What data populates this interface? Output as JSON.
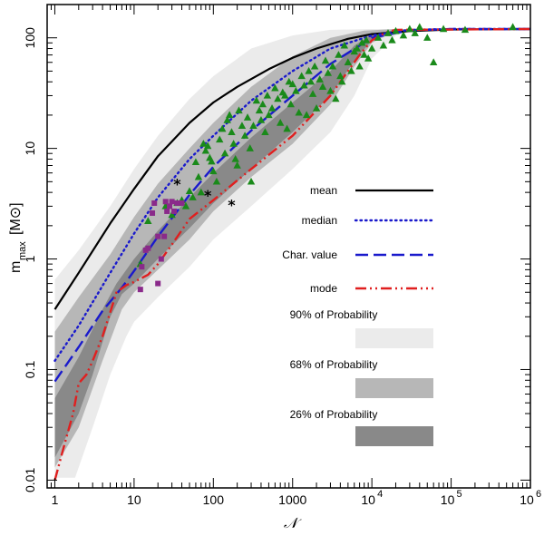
{
  "chart_data": {
    "type": "scatter",
    "title": "",
    "xlabel": "𝒩",
    "ylabel": {
      "main": "m",
      "sub": "max",
      "unit": "[M⊙]"
    },
    "x_scale": "log",
    "y_scale": "log",
    "xlim": [
      0.8,
      1000000
    ],
    "ylim": [
      0.0085,
      200
    ],
    "x_ticks": [
      {
        "value": 1,
        "label": "1"
      },
      {
        "value": 10,
        "label": "10"
      },
      {
        "value": 100,
        "label": "100"
      },
      {
        "value": 1000,
        "label": "1000"
      },
      {
        "value": 10000,
        "label": "10",
        "exp": "4"
      },
      {
        "value": 100000,
        "label": "10",
        "exp": "5"
      },
      {
        "value": 1000000,
        "label": "10",
        "exp": "6"
      }
    ],
    "y_ticks": [
      {
        "value": 0.01,
        "label": "0.01"
      },
      {
        "value": 0.1,
        "label": "0.1"
      },
      {
        "value": 1,
        "label": "1"
      },
      {
        "value": 10,
        "label": "10"
      },
      {
        "value": 100,
        "label": "100"
      }
    ],
    "bands": [
      {
        "name": "90% of Probability",
        "color": "#ebebeb",
        "upper": [
          [
            1,
            0.65
          ],
          [
            2,
            1.2
          ],
          [
            5,
            3
          ],
          [
            10,
            6.5
          ],
          [
            20,
            13
          ],
          [
            50,
            28
          ],
          [
            100,
            45
          ],
          [
            300,
            80
          ],
          [
            1000,
            105
          ],
          [
            3000,
            118
          ],
          [
            10000,
            120
          ],
          [
            1000000,
            120
          ]
        ],
        "lower": [
          [
            1,
            0.0105
          ],
          [
            1.8,
            0.0105
          ],
          [
            3,
            0.03
          ],
          [
            5,
            0.09
          ],
          [
            8,
            0.2
          ],
          [
            10,
            0.27
          ],
          [
            20,
            0.45
          ],
          [
            50,
            0.85
          ],
          [
            100,
            1.5
          ],
          [
            300,
            3
          ],
          [
            1000,
            6.5
          ],
          [
            3000,
            14
          ],
          [
            6000,
            30
          ],
          [
            10000,
            65
          ],
          [
            20000,
            105
          ],
          [
            40000,
            118
          ],
          [
            100000,
            120
          ],
          [
            1000000,
            120
          ]
        ]
      },
      {
        "name": "68% of Probability",
        "color": "#b7b7b7",
        "upper": [
          [
            1,
            0.22
          ],
          [
            2,
            0.45
          ],
          [
            5,
            1.1
          ],
          [
            10,
            2.4
          ],
          [
            20,
            4.8
          ],
          [
            50,
            10
          ],
          [
            100,
            17
          ],
          [
            300,
            36
          ],
          [
            1000,
            68
          ],
          [
            3000,
            100
          ],
          [
            8000,
            116
          ],
          [
            20000,
            120
          ],
          [
            1000000,
            120
          ]
        ],
        "lower": [
          [
            1,
            0.013
          ],
          [
            2,
            0.03
          ],
          [
            4,
            0.12
          ],
          [
            7,
            0.35
          ],
          [
            10,
            0.5
          ],
          [
            20,
            0.8
          ],
          [
            50,
            1.5
          ],
          [
            100,
            2.7
          ],
          [
            300,
            5.5
          ],
          [
            1000,
            11
          ],
          [
            3000,
            25
          ],
          [
            6000,
            55
          ],
          [
            10000,
            90
          ],
          [
            20000,
            115
          ],
          [
            50000,
            120
          ],
          [
            1000000,
            120
          ]
        ]
      },
      {
        "name": "26% of Probability",
        "color": "#898989",
        "upper": [
          [
            1,
            0.055
          ],
          [
            2,
            0.13
          ],
          [
            4,
            0.35
          ],
          [
            6,
            0.6
          ],
          [
            10,
            1.0
          ],
          [
            20,
            1.8
          ],
          [
            50,
            3.6
          ],
          [
            100,
            6
          ],
          [
            300,
            12.5
          ],
          [
            1000,
            26
          ],
          [
            3000,
            50
          ],
          [
            6000,
            85
          ],
          [
            10000,
            108
          ],
          [
            20000,
            118
          ],
          [
            1000000,
            120
          ]
        ],
        "lower": [
          [
            1,
            0.016
          ],
          [
            2,
            0.04
          ],
          [
            3,
            0.09
          ],
          [
            5,
            0.3
          ],
          [
            7,
            0.48
          ],
          [
            10,
            0.6
          ],
          [
            20,
            1.0
          ],
          [
            50,
            1.9
          ],
          [
            100,
            3.2
          ],
          [
            300,
            6.5
          ],
          [
            1000,
            14
          ],
          [
            3000,
            30
          ],
          [
            6000,
            62
          ],
          [
            10000,
            95
          ],
          [
            20000,
            116
          ],
          [
            1000000,
            120
          ]
        ]
      }
    ],
    "series": [
      {
        "name": "mean",
        "style": "solid",
        "color": "#000000",
        "points": [
          [
            1,
            0.35
          ],
          [
            2,
            0.75
          ],
          [
            5,
            2.1
          ],
          [
            10,
            4.3
          ],
          [
            20,
            8.5
          ],
          [
            50,
            17
          ],
          [
            100,
            26
          ],
          [
            200,
            36
          ],
          [
            500,
            52
          ],
          [
            1000,
            66
          ],
          [
            2000,
            80
          ],
          [
            5000,
            98
          ],
          [
            10000,
            108
          ],
          [
            30000,
            115
          ],
          [
            100000,
            119
          ],
          [
            1000000,
            120
          ]
        ]
      },
      {
        "name": "median",
        "style": "dotted",
        "color": "#1a1acc",
        "points": [
          [
            1,
            0.12
          ],
          [
            2,
            0.25
          ],
          [
            5,
            0.75
          ],
          [
            10,
            1.7
          ],
          [
            20,
            3.6
          ],
          [
            50,
            8
          ],
          [
            100,
            13
          ],
          [
            300,
            27
          ],
          [
            1000,
            50
          ],
          [
            3000,
            80
          ],
          [
            10000,
            105
          ],
          [
            30000,
            118
          ],
          [
            100000,
            120
          ],
          [
            1000000,
            120
          ]
        ]
      },
      {
        "name": "Char. value",
        "style": "dashed",
        "color": "#1a1acc",
        "points": [
          [
            1,
            0.078
          ],
          [
            2,
            0.16
          ],
          [
            4,
            0.34
          ],
          [
            7,
            0.55
          ],
          [
            10,
            0.78
          ],
          [
            20,
            1.6
          ],
          [
            50,
            3.8
          ],
          [
            100,
            6.8
          ],
          [
            300,
            14.5
          ],
          [
            1000,
            30
          ],
          [
            3000,
            58
          ],
          [
            10000,
            100
          ],
          [
            30000,
            117
          ],
          [
            100000,
            120
          ],
          [
            1000000,
            120
          ]
        ]
      },
      {
        "name": "mode",
        "style": "dashdotdot",
        "color": "#e01f1f",
        "points": [
          [
            1,
            0.01
          ],
          [
            1.3,
            0.02
          ],
          [
            1.7,
            0.04
          ],
          [
            2,
            0.075
          ],
          [
            2.5,
            0.09
          ],
          [
            3,
            0.12
          ],
          [
            4,
            0.2
          ],
          [
            5,
            0.33
          ],
          [
            6,
            0.5
          ],
          [
            8,
            0.58
          ],
          [
            10,
            0.62
          ],
          [
            15,
            0.72
          ],
          [
            20,
            0.9
          ],
          [
            30,
            1.35
          ],
          [
            50,
            2.3
          ],
          [
            100,
            3.4
          ],
          [
            300,
            6.5
          ],
          [
            1000,
            13
          ],
          [
            3000,
            30
          ],
          [
            5000,
            50
          ],
          [
            7000,
            70
          ],
          [
            10000,
            95
          ],
          [
            15000,
            112
          ],
          [
            20000,
            118
          ],
          [
            1000000,
            120
          ]
        ]
      }
    ],
    "observations": {
      "triangles": {
        "color": "#1a8a1a",
        "points": [
          [
            12,
            0.9
          ],
          [
            15,
            2.2
          ],
          [
            25,
            3.0
          ],
          [
            30,
            2.5
          ],
          [
            35,
            3.2
          ],
          [
            40,
            3.4
          ],
          [
            45,
            3.0
          ],
          [
            50,
            4.1
          ],
          [
            55,
            3.6
          ],
          [
            60,
            7.5
          ],
          [
            65,
            5.5
          ],
          [
            70,
            4.0
          ],
          [
            75,
            11
          ],
          [
            80,
            9.5
          ],
          [
            85,
            10.5
          ],
          [
            90,
            8.2
          ],
          [
            95,
            7.6
          ],
          [
            100,
            6.2
          ],
          [
            110,
            5.0
          ],
          [
            120,
            12
          ],
          [
            130,
            15
          ],
          [
            140,
            9
          ],
          [
            150,
            18
          ],
          [
            160,
            20
          ],
          [
            170,
            14
          ],
          [
            180,
            11
          ],
          [
            190,
            8
          ],
          [
            200,
            7
          ],
          [
            210,
            22
          ],
          [
            230,
            16
          ],
          [
            250,
            13
          ],
          [
            270,
            19
          ],
          [
            290,
            10
          ],
          [
            300,
            5
          ],
          [
            320,
            16
          ],
          [
            350,
            27
          ],
          [
            380,
            22
          ],
          [
            400,
            18
          ],
          [
            420,
            25
          ],
          [
            450,
            14
          ],
          [
            480,
            30
          ],
          [
            500,
            20
          ],
          [
            550,
            23
          ],
          [
            600,
            35
          ],
          [
            650,
            28
          ],
          [
            700,
            17
          ],
          [
            750,
            32
          ],
          [
            800,
            30
          ],
          [
            850,
            15
          ],
          [
            900,
            40
          ],
          [
            950,
            25
          ],
          [
            1000,
            38
          ],
          [
            1100,
            33
          ],
          [
            1200,
            21
          ],
          [
            1300,
            45
          ],
          [
            1400,
            37
          ],
          [
            1500,
            20
          ],
          [
            1600,
            50
          ],
          [
            1700,
            40
          ],
          [
            1800,
            31
          ],
          [
            1900,
            55
          ],
          [
            2000,
            23
          ],
          [
            2200,
            42
          ],
          [
            2400,
            36
          ],
          [
            2600,
            62
          ],
          [
            2800,
            48
          ],
          [
            3000,
            33
          ],
          [
            3200,
            55
          ],
          [
            3500,
            28
          ],
          [
            3800,
            70
          ],
          [
            4000,
            45
          ],
          [
            4200,
            40
          ],
          [
            4500,
            85
          ],
          [
            5000,
            60
          ],
          [
            5500,
            50
          ],
          [
            6000,
            75
          ],
          [
            6500,
            80
          ],
          [
            7000,
            55
          ],
          [
            7500,
            90
          ],
          [
            8000,
            70
          ],
          [
            8500,
            95
          ],
          [
            9000,
            65
          ],
          [
            10000,
            80
          ],
          [
            12000,
            100
          ],
          [
            14000,
            85
          ],
          [
            16000,
            110
          ],
          [
            18000,
            95
          ],
          [
            20000,
            115
          ],
          [
            25000,
            105
          ],
          [
            30000,
            120
          ],
          [
            35000,
            110
          ],
          [
            40000,
            125
          ],
          [
            50000,
            100
          ],
          [
            60000,
            60
          ],
          [
            80000,
            120
          ],
          [
            150000,
            118
          ],
          [
            600000,
            125
          ]
        ]
      },
      "squares": {
        "color": "#8a2a8a",
        "points": [
          [
            12,
            0.53
          ],
          [
            12.5,
            0.85
          ],
          [
            14,
            1.2
          ],
          [
            15,
            1.25
          ],
          [
            17,
            2.6
          ],
          [
            18,
            3.2
          ],
          [
            20,
            1.6
          ],
          [
            20,
            0.6
          ],
          [
            22,
            1.0
          ],
          [
            24,
            1.6
          ],
          [
            25,
            3.3
          ],
          [
            26,
            2.7
          ],
          [
            28,
            3.0
          ],
          [
            30,
            3.3
          ],
          [
            32,
            2.7
          ],
          [
            35,
            3.2
          ],
          [
            40,
            3.2
          ]
        ]
      },
      "stars": {
        "color": "#000000",
        "points": [
          [
            35,
            4.8
          ],
          [
            85,
            3.8
          ],
          [
            170,
            3.1
          ]
        ]
      }
    },
    "legend": {
      "placement": "right-center",
      "items": [
        {
          "label": "mean",
          "kind": "line",
          "style": "solid",
          "color": "#000000"
        },
        {
          "label": "median",
          "kind": "line",
          "style": "dotted",
          "color": "#1a1acc"
        },
        {
          "label": "Char. value",
          "kind": "line",
          "style": "dashed",
          "color": "#1a1acc"
        },
        {
          "label": "mode",
          "kind": "line",
          "style": "dashdotdot",
          "color": "#e01f1f"
        },
        {
          "label": "90% of Probability",
          "kind": "band",
          "color": "#ebebeb"
        },
        {
          "label": "68% of Probability",
          "kind": "band",
          "color": "#b7b7b7"
        },
        {
          "label": "26% of Probability",
          "kind": "band",
          "color": "#898989"
        }
      ]
    }
  }
}
